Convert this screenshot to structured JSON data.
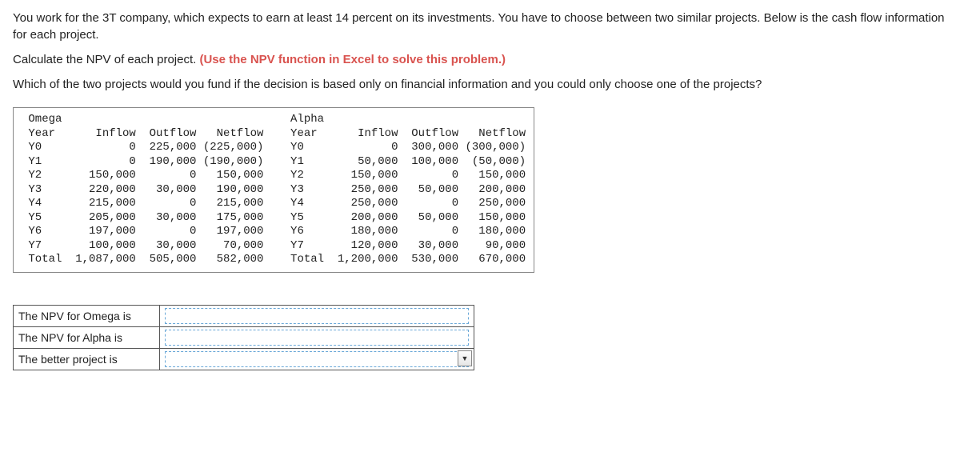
{
  "intro": {
    "p1": "You work for the 3T company, which expects to earn at least 14 percent on its investments. You have to choose between two similar projects. Below is the cash flow information for each project.",
    "p2a": "Calculate the NPV of each project. ",
    "p2b": "(Use the NPV function in Excel to solve this problem.)",
    "p3": "Which of the two projects would you fund if the decision is based only on financial information and you could only choose one of the projects?"
  },
  "tables": {
    "omega": {
      "name": "Omega",
      "headers": [
        "Year",
        "Inflow",
        "Outflow",
        "Netflow"
      ],
      "rows": [
        [
          "Y0",
          "0",
          "225,000",
          "(225,000)"
        ],
        [
          "Y1",
          "0",
          "190,000",
          "(190,000)"
        ],
        [
          "Y2",
          "150,000",
          "0",
          "150,000"
        ],
        [
          "Y3",
          "220,000",
          "30,000",
          "190,000"
        ],
        [
          "Y4",
          "215,000",
          "0",
          "215,000"
        ],
        [
          "Y5",
          "205,000",
          "30,000",
          "175,000"
        ],
        [
          "Y6",
          "197,000",
          "0",
          "197,000"
        ],
        [
          "Y7",
          "100,000",
          "30,000",
          "70,000"
        ],
        [
          "Total",
          "1,087,000",
          "505,000",
          "582,000"
        ]
      ]
    },
    "alpha": {
      "name": "Alpha",
      "headers": [
        "Year",
        "Inflow",
        "Outflow",
        "Netflow"
      ],
      "rows": [
        [
          "Y0",
          "0",
          "300,000",
          "(300,000)"
        ],
        [
          "Y1",
          "50,000",
          "100,000",
          "(50,000)"
        ],
        [
          "Y2",
          "150,000",
          "0",
          "150,000"
        ],
        [
          "Y3",
          "250,000",
          "50,000",
          "200,000"
        ],
        [
          "Y4",
          "250,000",
          "0",
          "250,000"
        ],
        [
          "Y5",
          "200,000",
          "50,000",
          "150,000"
        ],
        [
          "Y6",
          "180,000",
          "0",
          "180,000"
        ],
        [
          "Y7",
          "120,000",
          "30,000",
          "90,000"
        ],
        [
          "Total",
          "1,200,000",
          "530,000",
          "670,000"
        ]
      ]
    },
    "col_widths": {
      "year": 6,
      "inflow": 10,
      "outflow": 9,
      "netflow": 10
    }
  },
  "answers": {
    "row1": "The NPV for Omega is",
    "row2": "The NPV for Alpha is",
    "row3": "The better project is"
  }
}
